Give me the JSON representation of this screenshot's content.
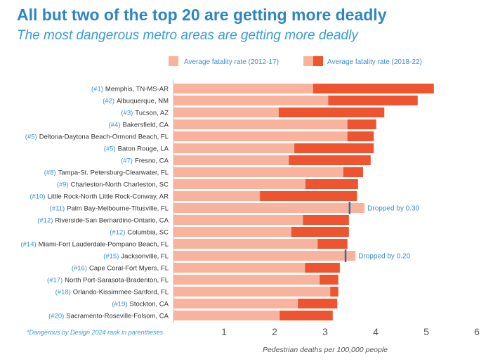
{
  "header": {
    "title": "All but two of the top 20 are getting more deadly",
    "subtitle": "The most dangerous metro areas are getting more deadly"
  },
  "footnote": "*Dangerous by Design 2024 rank in parentheses",
  "chart_data": {
    "type": "bar",
    "orientation": "horizontal",
    "xlabel": "Pedestrian deaths per 100,000 people",
    "xlim": [
      0,
      6
    ],
    "xticks": [
      "1",
      "2",
      "3",
      "4",
      "5",
      "6"
    ],
    "legend": [
      "Average fatality rate (2012-17)",
      "Average fatality rate (2018-22)"
    ],
    "legend_position": "top",
    "colors": {
      "early": "#f9b39c",
      "late": "#ee5430",
      "marker": "#2a6db0",
      "text": "#3a8fd0"
    },
    "categories": [
      {
        "rank": "(#1)",
        "name": "Memphis, TN-MS-AR"
      },
      {
        "rank": "(#2)",
        "name": "Albuquerque, NM"
      },
      {
        "rank": "(#3)",
        "name": "Tucson, AZ"
      },
      {
        "rank": "(#4)",
        "name": "Bakersfield, CA"
      },
      {
        "rank": "(#5)",
        "name": "Deltona-Daytona Beach-Ormond Beach, FL"
      },
      {
        "rank": "(#5)",
        "name": "Baton Rouge, LA"
      },
      {
        "rank": "(#7)",
        "name": "Fresno, CA"
      },
      {
        "rank": "(#8)",
        "name": "Tampa-St. Petersburg-Clearwater, FL"
      },
      {
        "rank": "(#9)",
        "name": "Charleston-North Charleston, SC"
      },
      {
        "rank": "(#10)",
        "name": "Little Rock-North Little Rock-Conway, AR"
      },
      {
        "rank": "(#11)",
        "name": "Palm Bay-Melbourne-Titusville, FL"
      },
      {
        "rank": "(#12)",
        "name": "Riverside-San Bernardino-Ontario, CA"
      },
      {
        "rank": "(#12)",
        "name": "Columbia, SC"
      },
      {
        "rank": "(#14)",
        "name": "Miami-Fort Lauderdale-Pompano Beach, FL"
      },
      {
        "rank": "(#15)",
        "name": "Jacksonville, FL"
      },
      {
        "rank": "(#16)",
        "name": "Cape Coral-Fort Myers, FL"
      },
      {
        "rank": "(#17)",
        "name": "North Port-Sarasota-Bradenton, FL"
      },
      {
        "rank": "(#18)",
        "name": "Orlando-Kissimmee-Sanford, FL"
      },
      {
        "rank": "(#19)",
        "name": "Stockton, CA"
      },
      {
        "rank": "(#20)",
        "name": "Sacramento-Roseville-Folsom, CA"
      }
    ],
    "series": [
      {
        "name": "Average fatality rate (2012-17)",
        "values": [
          2.76,
          3.06,
          2.08,
          3.44,
          3.44,
          2.39,
          2.28,
          3.36,
          2.61,
          1.71,
          3.78,
          2.56,
          2.33,
          2.85,
          3.6,
          2.6,
          2.89,
          3.1,
          2.46,
          2.1
        ]
      },
      {
        "name": "Average fatality rate (2018-22)",
        "values": [
          5.15,
          4.83,
          4.17,
          4.01,
          3.96,
          3.96,
          3.9,
          3.75,
          3.65,
          3.63,
          3.48,
          3.47,
          3.47,
          3.44,
          3.4,
          3.29,
          3.26,
          3.26,
          3.24,
          3.15
        ]
      }
    ],
    "annotations": [
      {
        "index": 10,
        "text": "Dropped by 0.30"
      },
      {
        "index": 14,
        "text": "Dropped by 0.20"
      }
    ]
  }
}
